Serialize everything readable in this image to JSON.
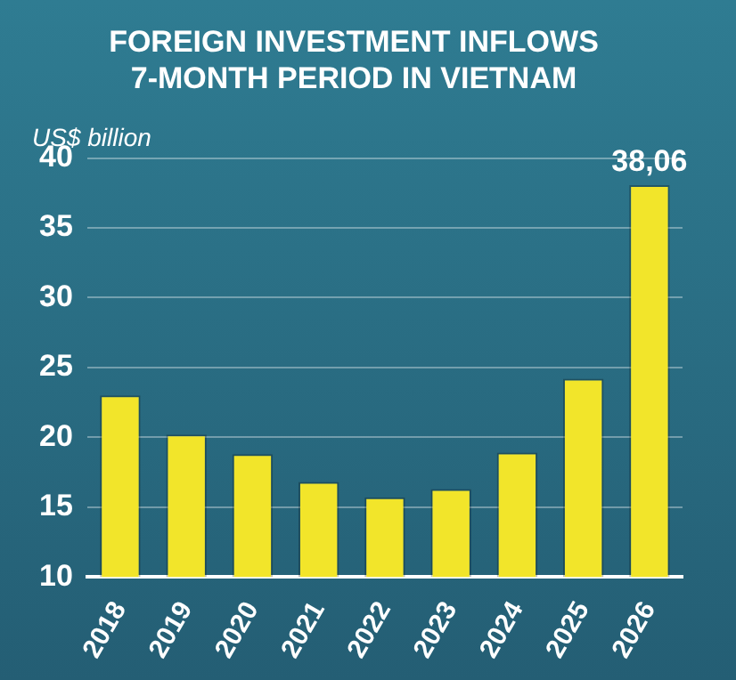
{
  "chart_data": {
    "type": "bar",
    "title": [
      "FOREIGN INVESTMENT INFLOWS",
      "7-MONTH PERIOD IN VIETNAM"
    ],
    "ylabel": "US$ billion",
    "categories": [
      "2018",
      "2019",
      "2020",
      "2021",
      "2022",
      "2023",
      "2024",
      "2025",
      "2026"
    ],
    "values": [
      23.0,
      20.2,
      18.8,
      16.8,
      15.7,
      16.3,
      18.9,
      24.2,
      38.06
    ],
    "value_labels": [
      null,
      null,
      null,
      null,
      null,
      null,
      null,
      null,
      "38,06"
    ],
    "color": "#f2e52a",
    "ylim": [
      10,
      40
    ],
    "yticks": [
      10,
      15,
      20,
      25,
      30,
      35,
      40
    ],
    "grid": "y",
    "legend": false
  }
}
